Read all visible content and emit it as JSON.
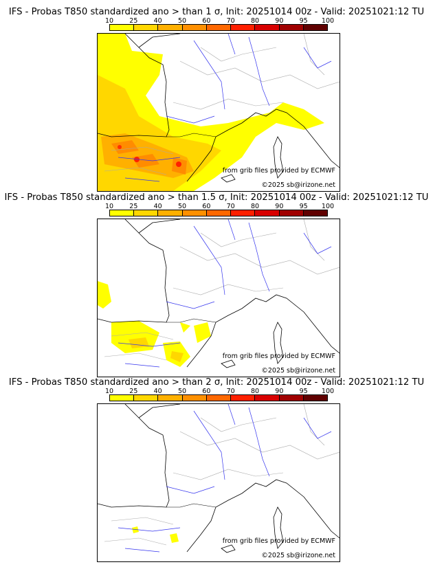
{
  "panels": [
    {
      "title": "IFS - Probas T850  standardized ano > than 1 σ, Init: 20251014 00z - Valid: 20251021:12 TU",
      "credit_source": "from grib files provided by ECMWF",
      "credit_copyright": "©2025 sb@irizone.net"
    },
    {
      "title": "IFS - Probas T850  standardized ano > than 1.5 σ, Init: 20251014 00z - Valid: 20251021:12 TU",
      "credit_source": "from grib files provided by ECMWF",
      "credit_copyright": "©2025 sb@irizone.net"
    },
    {
      "title": "IFS - Probas T850  standardized ano > than 2 σ, Init: 20251014 00z - Valid: 20251021:12 TU",
      "credit_source": "from grib files provided by ECMWF",
      "credit_copyright": "©2025 sb@irizone.net"
    }
  ],
  "colorbar": {
    "ticks": [
      "10",
      "25",
      "40",
      "50",
      "60",
      "70",
      "80",
      "90",
      "95",
      "100"
    ],
    "colors": [
      "#ffff00",
      "#ffd700",
      "#ffb000",
      "#ff9000",
      "#ff6800",
      "#ff2000",
      "#d80000",
      "#a00000",
      "#600000"
    ]
  }
}
